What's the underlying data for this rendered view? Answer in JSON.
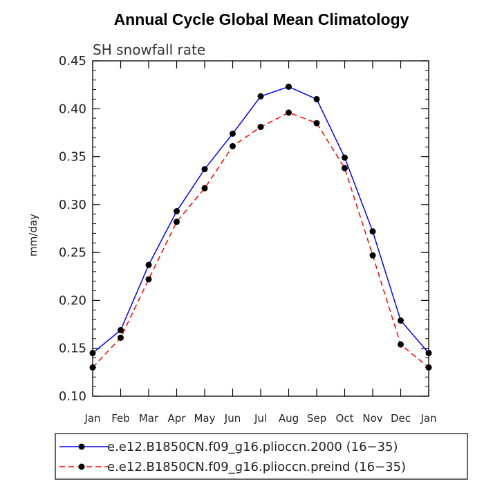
{
  "chart_data": {
    "type": "line",
    "title": "Annual Cycle Global Mean Climatology",
    "subtitle": "SH snowfall rate",
    "ylabel": "mm/day",
    "xlabel": "",
    "categories": [
      "Jan",
      "Feb",
      "Mar",
      "Apr",
      "May",
      "Jun",
      "Jul",
      "Aug",
      "Sep",
      "Oct",
      "Nov",
      "Dec",
      "Jan"
    ],
    "ylim": [
      0.1,
      0.45
    ],
    "yticks": [
      "0.10",
      "0.15",
      "0.20",
      "0.25",
      "0.30",
      "0.35",
      "0.40",
      "0.45"
    ],
    "yminor_step": 0.01,
    "grid": false,
    "legend_position": "bottom",
    "series": [
      {
        "name": "e.e12.B1850CN.f09_g16.plioccn.2000 (16−35)",
        "color": "#0000ff",
        "dash": "solid",
        "values": [
          0.145,
          0.169,
          0.237,
          0.293,
          0.337,
          0.374,
          0.413,
          0.423,
          0.41,
          0.349,
          0.272,
          0.179,
          0.145
        ]
      },
      {
        "name": "e.e12.B1850CN.f09_g16.plioccn.preind (16−35)",
        "color": "#ff0000",
        "dash": "dashed",
        "values": [
          0.13,
          0.161,
          0.222,
          0.282,
          0.317,
          0.361,
          0.381,
          0.396,
          0.385,
          0.338,
          0.247,
          0.154,
          0.13
        ]
      }
    ]
  }
}
